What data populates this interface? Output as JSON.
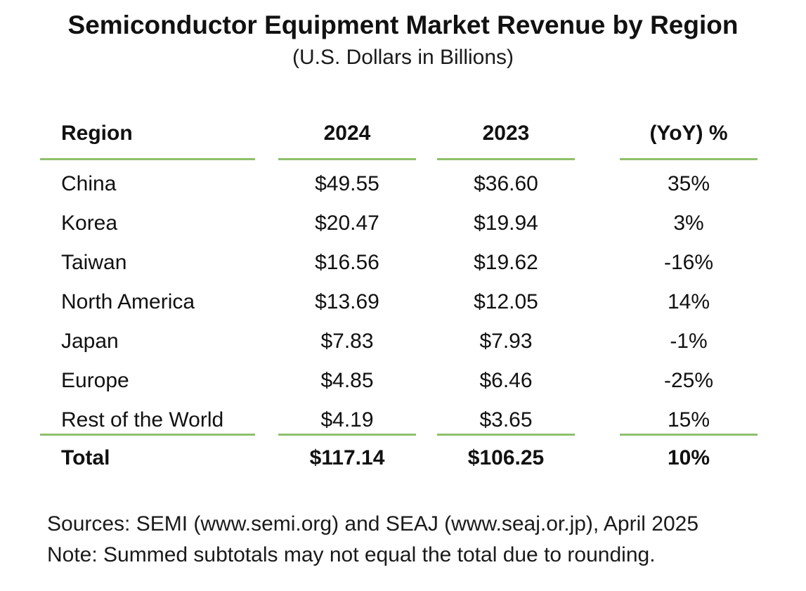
{
  "chart_data": {
    "type": "table",
    "title": "Semiconductor Equipment Market Revenue by Region",
    "subtitle": "(U.S. Dollars in Billions)",
    "columns": [
      "Region",
      "2024",
      "2023",
      "(YoY) %"
    ],
    "rows": [
      [
        "China",
        "$49.55",
        "$36.60",
        "35%"
      ],
      [
        "Korea",
        "$20.47",
        "$19.94",
        "3%"
      ],
      [
        "Taiwan",
        "$16.56",
        "$19.62",
        "-16%"
      ],
      [
        "North America",
        "$13.69",
        "$12.05",
        "14%"
      ],
      [
        "Japan",
        "$7.83",
        "$7.93",
        "-1%"
      ],
      [
        "Europe",
        "$4.85",
        "$6.46",
        "-25%"
      ],
      [
        "Rest of the World",
        "$4.19",
        "$3.65",
        "15%"
      ]
    ],
    "total": [
      "Total",
      "$117.14",
      "$106.25",
      "10%"
    ],
    "values_2024": [
      49.55,
      20.47,
      16.56,
      13.69,
      7.83,
      4.85,
      4.19
    ],
    "values_2023": [
      36.6,
      19.94,
      19.62,
      12.05,
      7.93,
      6.46,
      3.65
    ],
    "yoy_percent": [
      35,
      3,
      -16,
      14,
      -1,
      -25,
      15
    ],
    "total_2024": 117.14,
    "total_2023": 106.25,
    "total_yoy_percent": 10
  },
  "footnotes": {
    "sources": "Sources: SEMI (www.semi.org) and SEAJ (www.seaj.or.jp), April 2025",
    "note": "Note: Summed subtotals may not equal the total due to rounding."
  },
  "colors": {
    "rule": "#8ec06c",
    "text": "#111111"
  }
}
